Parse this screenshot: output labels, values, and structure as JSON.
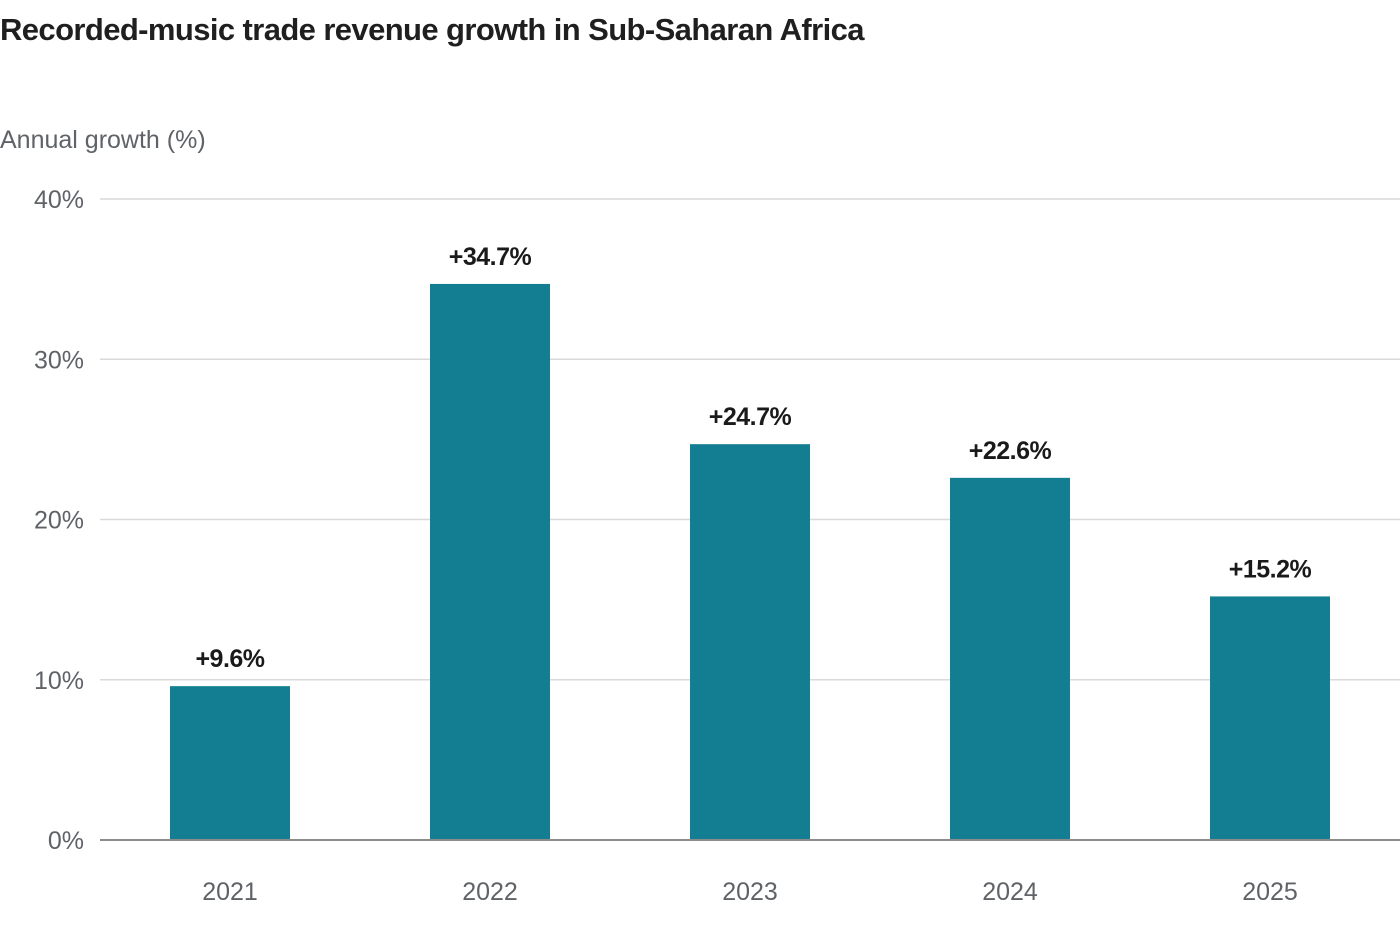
{
  "colors": {
    "bar": "#137d91",
    "grid": "#d9d9d9",
    "baseline": "#8c8c8c"
  },
  "chart_data": {
    "type": "bar",
    "title": "Recorded-music trade revenue growth in Sub-Saharan Africa",
    "ylabel": "Annual growth (%)",
    "xlabel": "",
    "categories": [
      "2021",
      "2022",
      "2023",
      "2024",
      "2025"
    ],
    "values": [
      9.6,
      34.7,
      24.7,
      22.6,
      15.2
    ],
    "data_labels": [
      "+9.6%",
      "+34.7%",
      "+24.7%",
      "+22.6%",
      "+15.2%"
    ],
    "ylim": [
      0,
      40
    ],
    "yticks": [
      0,
      10,
      20,
      30,
      40
    ],
    "ytick_labels": [
      "0%",
      "10%",
      "20%",
      "30%",
      "40%"
    ],
    "grid": true
  }
}
